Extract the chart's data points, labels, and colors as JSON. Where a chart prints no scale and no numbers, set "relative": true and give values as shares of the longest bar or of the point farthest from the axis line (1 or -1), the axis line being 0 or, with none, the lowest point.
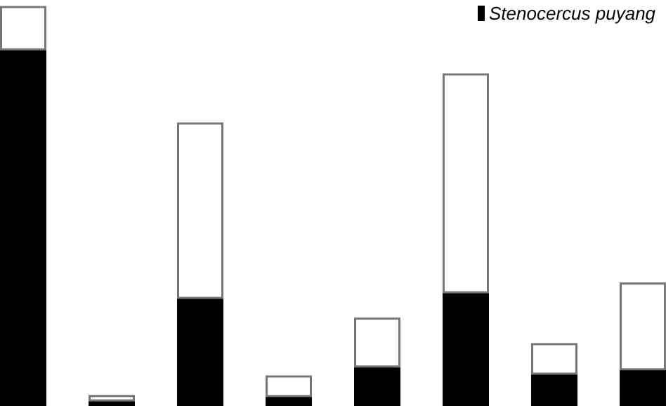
{
  "chart_data": {
    "type": "bar",
    "stacked": true,
    "relative": true,
    "categories": [
      null,
      null,
      null,
      null,
      null,
      null,
      null,
      null
    ],
    "legend": "top right",
    "series": [
      {
        "name": "Stenocercus puyang",
        "color": "#000000",
        "values": [
          0.894,
          0.014,
          0.271,
          0.025,
          0.099,
          0.285,
          0.081,
          0.092
        ]
      },
      {
        "color": "#ffffff",
        "values": [
          0.106,
          0.011,
          0.437,
          0.049,
          0.12,
          0.546,
          0.074,
          0.215
        ]
      }
    ]
  }
}
